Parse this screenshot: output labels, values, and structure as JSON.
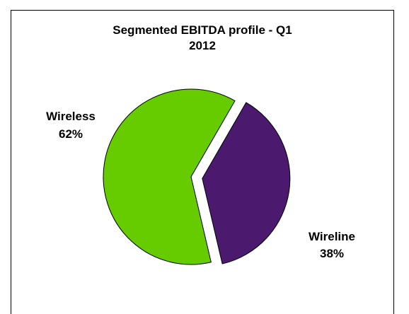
{
  "chart_data": {
    "type": "pie",
    "title": "Segmented EBITDA profile - Q1 2012",
    "title_lines": [
      "Segmented EBITDA profile - Q1",
      "2012"
    ],
    "slices": [
      {
        "label": "Wireless",
        "value": 62,
        "value_label": "62%",
        "color": "#66cc00"
      },
      {
        "label": "Wireline",
        "value": 38,
        "value_label": "38%",
        "color": "#4b1a6e"
      }
    ],
    "exploded": "Wireline",
    "legend": "none",
    "border_color": "#000000"
  }
}
